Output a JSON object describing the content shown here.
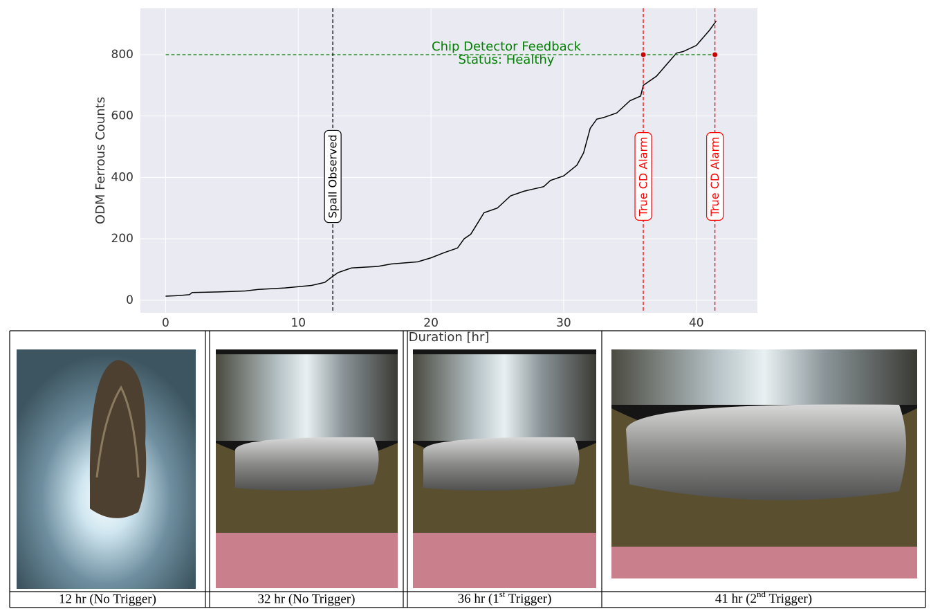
{
  "chart_data": {
    "type": "line",
    "xlabel": "Duration [hr]",
    "ylabel": "ODM Ferrous Counts",
    "x": [
      0,
      1,
      1.8,
      2,
      4,
      6,
      7,
      9,
      11,
      12,
      12.6,
      13,
      14,
      16,
      17,
      19,
      20,
      21,
      22,
      22.5,
      23,
      23.5,
      24,
      25,
      25.5,
      26,
      27,
      28,
      28.5,
      29,
      30,
      31,
      31.5,
      32,
      32.5,
      33,
      34,
      35,
      35.8,
      36,
      37,
      38,
      38.5,
      39,
      40,
      41,
      41.5
    ],
    "values": [
      13,
      15,
      18,
      25,
      27,
      30,
      35,
      40,
      48,
      58,
      78,
      90,
      105,
      110,
      118,
      125,
      138,
      155,
      170,
      200,
      215,
      250,
      285,
      300,
      320,
      340,
      355,
      365,
      370,
      390,
      405,
      440,
      480,
      560,
      590,
      595,
      610,
      650,
      665,
      700,
      730,
      780,
      805,
      810,
      830,
      880,
      910
    ],
    "color": "#000000",
    "xlim": [
      -1.9,
      44.6
    ],
    "ylim": [
      -41,
      951
    ],
    "xticks": [
      0,
      10,
      20,
      30,
      40
    ],
    "yticks": [
      0,
      200,
      400,
      600,
      800
    ],
    "grid": true,
    "vlines": [
      {
        "x": 12.6,
        "label": "Spall Observed",
        "color": "#000000"
      },
      {
        "x": 36,
        "label": "True CD Alarm",
        "color": "#ff0000"
      },
      {
        "x": 41.4,
        "label": "True CD Alarm",
        "color": "#ff0000"
      }
    ],
    "hline": {
      "y": 800,
      "x_range": [
        0,
        41.4
      ],
      "label": [
        "Chip Detector Feedback",
        "Status: Healthy"
      ],
      "color": "#008000"
    },
    "markers": {
      "x": [
        36,
        41.4
      ],
      "y": [
        800,
        800
      ],
      "color": "#cc0000"
    }
  },
  "table": {
    "captions": [
      "12 hr (No Trigger)",
      "32 hr (No Trigger)",
      {
        "pre": "36 hr (1",
        "sup": "st",
        "post": " Trigger)"
      },
      {
        "pre": "41 hr (2",
        "sup": "nd",
        "post": " Trigger)"
      }
    ]
  }
}
